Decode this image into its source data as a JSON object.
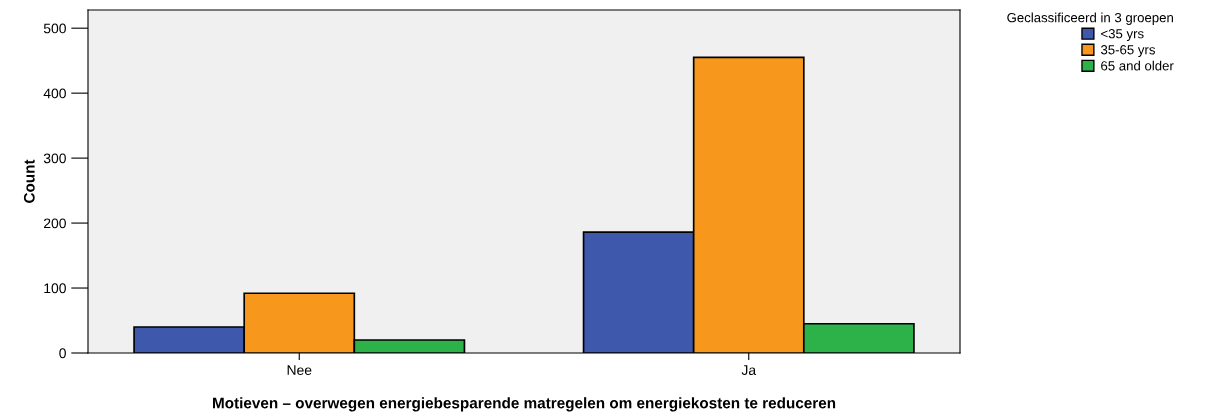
{
  "chart_data": {
    "type": "bar",
    "xlabel": "Motieven – overwegen energiebesparende matregelen om energiekosten te reduceren",
    "ylabel": "Count",
    "categories": [
      "Nee",
      "Ja"
    ],
    "series": [
      {
        "name": "<35 yrs",
        "color": "#3e58ac",
        "values": [
          40,
          186
        ]
      },
      {
        "name": "35-65 yrs",
        "color": "#f7981d",
        "values": [
          92,
          455
        ]
      },
      {
        "name": "65 and older",
        "color": "#2db24a",
        "values": [
          20,
          45
        ]
      }
    ],
    "legend_title": "Geclassificeerd in 3 groepen",
    "legend": "right",
    "grid": false,
    "ylim": [
      0,
      528
    ],
    "yticks": [
      0,
      100,
      200,
      300,
      400,
      500
    ]
  }
}
